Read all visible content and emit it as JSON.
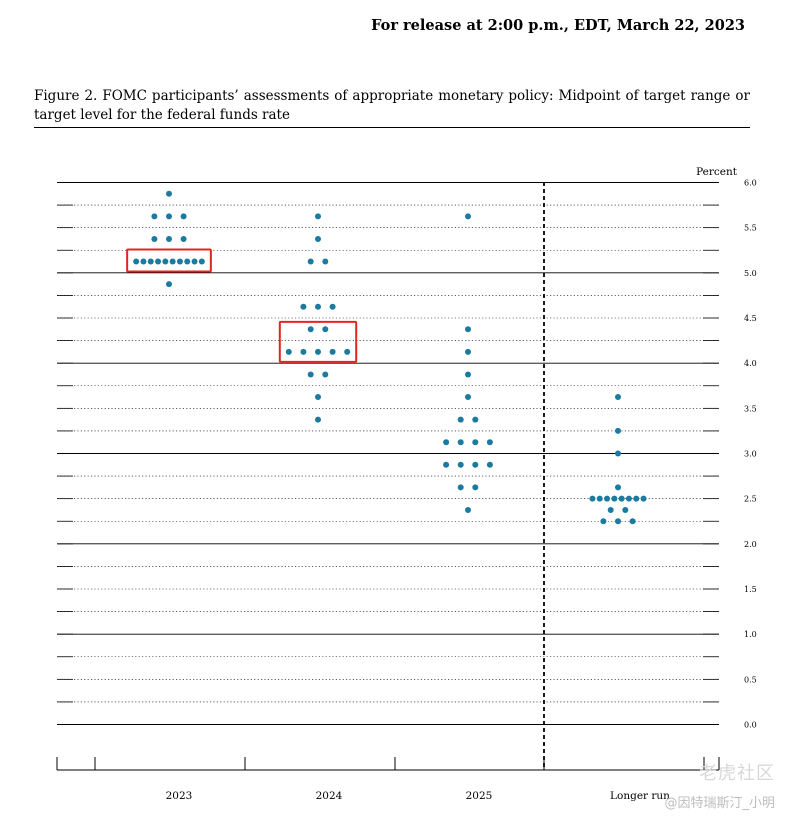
{
  "header": {
    "release": "For release at 2:00 p.m., EDT, March 22, 2023"
  },
  "figure": {
    "caption": "Figure 2.  FOMC participants’ assessments of appropriate monetary policy:  Midpoint of target range or target level for the federal funds rate"
  },
  "watermark": {
    "line1": "老虎社区",
    "line2": "@因特瑞斯汀_小明"
  },
  "colors": {
    "dot": "#1a7aa0",
    "highlight": "#e0271e"
  },
  "chart_data": {
    "type": "scatter",
    "unit_label": "Percent",
    "ylim": [
      0,
      6
    ],
    "y_ticks": [
      "6.0",
      "5.5",
      "5.0",
      "4.5",
      "4.0",
      "3.5",
      "3.0",
      "2.5",
      "2.0",
      "1.5",
      "1.0",
      "0.5",
      "0.0"
    ],
    "categories": [
      "2023",
      "2024",
      "2025",
      "Longer run"
    ],
    "dots": [
      {
        "category": "2023",
        "groups": [
          {
            "value": 5.875,
            "count": 1
          },
          {
            "value": 5.625,
            "count": 3
          },
          {
            "value": 5.375,
            "count": 3
          },
          {
            "value": 5.125,
            "count": 10
          },
          {
            "value": 4.875,
            "count": 1
          }
        ]
      },
      {
        "category": "2024",
        "groups": [
          {
            "value": 5.625,
            "count": 1
          },
          {
            "value": 5.375,
            "count": 1
          },
          {
            "value": 5.125,
            "count": 2
          },
          {
            "value": 4.625,
            "count": 3
          },
          {
            "value": 4.375,
            "count": 2
          },
          {
            "value": 4.125,
            "count": 5
          },
          {
            "value": 3.875,
            "count": 2
          },
          {
            "value": 3.625,
            "count": 1
          },
          {
            "value": 3.375,
            "count": 1
          }
        ]
      },
      {
        "category": "2025",
        "groups": [
          {
            "value": 5.625,
            "count": 1
          },
          {
            "value": 4.375,
            "count": 1
          },
          {
            "value": 4.125,
            "count": 1
          },
          {
            "value": 3.875,
            "count": 1
          },
          {
            "value": 3.625,
            "count": 1
          },
          {
            "value": 3.375,
            "count": 2
          },
          {
            "value": 3.125,
            "count": 4
          },
          {
            "value": 2.875,
            "count": 4
          },
          {
            "value": 2.625,
            "count": 2
          },
          {
            "value": 2.375,
            "count": 1
          }
        ]
      },
      {
        "category": "Longer run",
        "groups": [
          {
            "value": 3.625,
            "count": 1
          },
          {
            "value": 3.25,
            "count": 1
          },
          {
            "value": 3.0,
            "count": 1
          },
          {
            "value": 2.625,
            "count": 1
          },
          {
            "value": 2.5,
            "count": 8
          },
          {
            "value": 2.375,
            "count": 2
          },
          {
            "value": 2.25,
            "count": 3
          }
        ]
      }
    ],
    "highlights": [
      {
        "category": "2023",
        "value": 5.125
      },
      {
        "category": "2024",
        "value": 4.125
      }
    ],
    "grid": true,
    "separator_before": "Longer run"
  }
}
